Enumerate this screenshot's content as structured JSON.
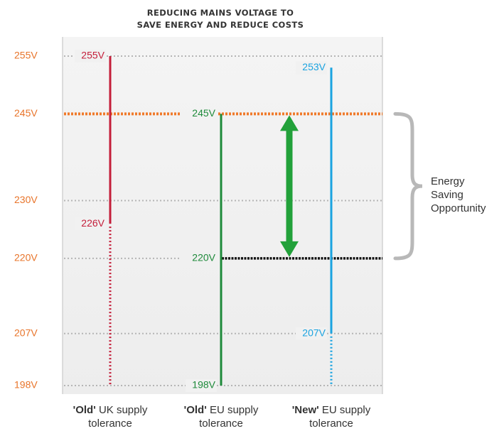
{
  "chart_data": {
    "type": "range",
    "title_lines": [
      "REDUCING MAINS VOLTAGE TO",
      "SAVE ENERGY AND REDUCE COSTS"
    ],
    "y_ticks": [
      255,
      245,
      230,
      220,
      207,
      198
    ],
    "y_tick_labels": [
      "255V",
      "245V",
      "230V",
      "220V",
      "207V",
      "198V"
    ],
    "grid": "dotted",
    "highlight_lines": [
      {
        "value": 245,
        "color": "#f07a2a"
      },
      {
        "value": 220,
        "color": "#111111"
      }
    ],
    "series": [
      {
        "name_bold": "'Old'",
        "name_rest": " UK supply",
        "name_line2": "tolerance",
        "color": "#c41e3a",
        "solid": [
          226,
          255
        ],
        "dotted": [
          198,
          226
        ],
        "labels": [
          {
            "v": 255,
            "text": "255V"
          },
          {
            "v": 226,
            "text": "226V"
          }
        ]
      },
      {
        "name_bold": "'Old'",
        "name_rest": " EU supply",
        "name_line2": "tolerance",
        "color": "#1e8a3a",
        "solid": [
          198,
          245
        ],
        "dotted": null,
        "labels": [
          {
            "v": 245,
            "text": "245V"
          },
          {
            "v": 220,
            "text": "220V"
          },
          {
            "v": 198,
            "text": "198V"
          }
        ]
      },
      {
        "name_bold": "'New'",
        "name_rest": " EU supply",
        "name_line2": "tolerance",
        "color": "#1aa3e0",
        "solid": [
          207,
          253
        ],
        "dotted": [
          198,
          207
        ],
        "labels": [
          {
            "v": 253,
            "text": "253V"
          },
          {
            "v": 207,
            "text": "207V"
          }
        ]
      }
    ],
    "arrow": {
      "from": 220,
      "to": 245,
      "color": "#22a13a"
    },
    "annotation": {
      "lines": [
        "Energy",
        "Saving",
        "Opportunity"
      ],
      "range": [
        220,
        245
      ]
    }
  },
  "colors": {
    "axis_label": "#e8742a",
    "grid": "#b5b5b5",
    "panel": "#ededed",
    "bracket": "#b8b8b8"
  }
}
